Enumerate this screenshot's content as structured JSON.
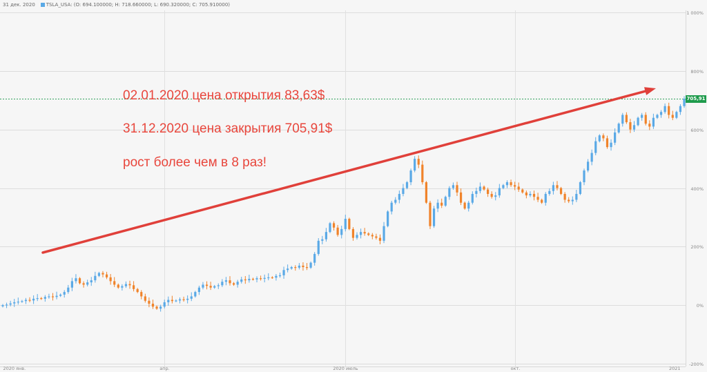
{
  "header": {
    "date": "31 дек. 2020",
    "ohlc": "TSLA_USA: (O: 694.100000; H: 718.660000; L: 690.320000; C: 705.910000)"
  },
  "annotations": [
    "02.01.2020 цена открытия 83,63$",
    "31.12.2020 цена закрытия 705,91$",
    "рост более чем в 8 раз!"
  ],
  "last_price_label": "705,91",
  "colors": {
    "up": "#5aa9e6",
    "down": "#f0832a",
    "arrow": "#e0403a",
    "price_line": "#2ca05a",
    "price_tag": "#1e9b4c"
  },
  "chart_data": {
    "type": "candlestick",
    "title": "",
    "axis_type": "percent change",
    "ylim": [
      -200,
      1000
    ],
    "y_ticks": [
      "1 000%",
      "800%",
      "600%",
      "400%",
      "200%",
      "0%",
      "-200%"
    ],
    "y_tick_values": [
      1000,
      800,
      600,
      400,
      200,
      0,
      -200
    ],
    "x_ticks": [
      "2020 янв.",
      "апр.",
      "2020 июль",
      "окт.",
      "2021"
    ],
    "series": [
      {
        "name": "TSLA_USA",
        "points": [
          [
            0,
            0
          ],
          [
            1,
            2
          ],
          [
            2,
            6
          ],
          [
            3,
            10
          ],
          [
            4,
            12
          ],
          [
            5,
            14
          ],
          [
            6,
            18
          ],
          [
            7,
            16
          ],
          [
            8,
            22
          ],
          [
            9,
            24
          ],
          [
            10,
            22
          ],
          [
            11,
            28
          ],
          [
            12,
            30
          ],
          [
            13,
            28
          ],
          [
            14,
            32
          ],
          [
            15,
            36
          ],
          [
            16,
            45
          ],
          [
            17,
            60
          ],
          [
            18,
            82
          ],
          [
            19,
            92
          ],
          [
            20,
            75
          ],
          [
            21,
            70
          ],
          [
            22,
            78
          ],
          [
            23,
            85
          ],
          [
            24,
            100
          ],
          [
            25,
            110
          ],
          [
            26,
            105
          ],
          [
            27,
            95
          ],
          [
            28,
            82
          ],
          [
            29,
            70
          ],
          [
            30,
            60
          ],
          [
            31,
            65
          ],
          [
            32,
            72
          ],
          [
            33,
            68
          ],
          [
            34,
            55
          ],
          [
            35,
            45
          ],
          [
            36,
            30
          ],
          [
            37,
            15
          ],
          [
            38,
            5
          ],
          [
            39,
            -5
          ],
          [
            40,
            -12
          ],
          [
            41,
            -5
          ],
          [
            42,
            10
          ],
          [
            43,
            18
          ],
          [
            44,
            14
          ],
          [
            45,
            16
          ],
          [
            46,
            20
          ],
          [
            47,
            18
          ],
          [
            48,
            22
          ],
          [
            49,
            30
          ],
          [
            50,
            45
          ],
          [
            51,
            60
          ],
          [
            52,
            70
          ],
          [
            53,
            66
          ],
          [
            54,
            60
          ],
          [
            55,
            65
          ],
          [
            56,
            68
          ],
          [
            57,
            80
          ],
          [
            58,
            85
          ],
          [
            59,
            75
          ],
          [
            60,
            70
          ],
          [
            61,
            80
          ],
          [
            62,
            88
          ],
          [
            63,
            85
          ],
          [
            64,
            90
          ],
          [
            65,
            88
          ],
          [
            66,
            92
          ],
          [
            67,
            90
          ],
          [
            68,
            93
          ],
          [
            69,
            95
          ],
          [
            70,
            94
          ],
          [
            71,
            100
          ],
          [
            72,
            102
          ],
          [
            73,
            120
          ],
          [
            74,
            125
          ],
          [
            75,
            130
          ],
          [
            76,
            128
          ],
          [
            77,
            135
          ],
          [
            78,
            130
          ],
          [
            79,
            128
          ],
          [
            80,
            145
          ],
          [
            81,
            175
          ],
          [
            82,
            220
          ],
          [
            83,
            225
          ],
          [
            84,
            250
          ],
          [
            85,
            280
          ],
          [
            86,
            265
          ],
          [
            87,
            240
          ],
          [
            88,
            260
          ],
          [
            89,
            295
          ],
          [
            90,
            260
          ],
          [
            91,
            230
          ],
          [
            92,
            240
          ],
          [
            93,
            250
          ],
          [
            94,
            245
          ],
          [
            95,
            240
          ],
          [
            96,
            235
          ],
          [
            97,
            230
          ],
          [
            98,
            220
          ],
          [
            99,
            270
          ],
          [
            100,
            320
          ],
          [
            101,
            350
          ],
          [
            102,
            360
          ],
          [
            103,
            380
          ],
          [
            104,
            400
          ],
          [
            105,
            420
          ],
          [
            106,
            460
          ],
          [
            107,
            500
          ],
          [
            108,
            480
          ],
          [
            109,
            420
          ],
          [
            110,
            350
          ],
          [
            111,
            270
          ],
          [
            112,
            330
          ],
          [
            113,
            350
          ],
          [
            114,
            340
          ],
          [
            115,
            370
          ],
          [
            116,
            400
          ],
          [
            117,
            410
          ],
          [
            118,
            385
          ],
          [
            119,
            350
          ],
          [
            120,
            330
          ],
          [
            121,
            350
          ],
          [
            122,
            380
          ],
          [
            123,
            390
          ],
          [
            124,
            405
          ],
          [
            125,
            395
          ],
          [
            126,
            380
          ],
          [
            127,
            370
          ],
          [
            128,
            375
          ],
          [
            129,
            400
          ],
          [
            130,
            410
          ],
          [
            131,
            420
          ],
          [
            132,
            410
          ],
          [
            133,
            405
          ],
          [
            134,
            395
          ],
          [
            135,
            385
          ],
          [
            136,
            375
          ],
          [
            137,
            380
          ],
          [
            138,
            370
          ],
          [
            139,
            360
          ],
          [
            140,
            350
          ],
          [
            141,
            380
          ],
          [
            142,
            390
          ],
          [
            143,
            410
          ],
          [
            144,
            400
          ],
          [
            145,
            380
          ],
          [
            146,
            360
          ],
          [
            147,
            355
          ],
          [
            148,
            360
          ],
          [
            149,
            380
          ],
          [
            150,
            420
          ],
          [
            151,
            460
          ],
          [
            152,
            490
          ],
          [
            153,
            520
          ],
          [
            154,
            560
          ],
          [
            155,
            580
          ],
          [
            156,
            570
          ],
          [
            157,
            540
          ],
          [
            158,
            555
          ],
          [
            159,
            590
          ],
          [
            160,
            620
          ],
          [
            161,
            650
          ],
          [
            162,
            625
          ],
          [
            163,
            600
          ],
          [
            164,
            615
          ],
          [
            165,
            640
          ],
          [
            166,
            650
          ],
          [
            167,
            620
          ],
          [
            168,
            610
          ],
          [
            169,
            640
          ],
          [
            170,
            650
          ],
          [
            171,
            660
          ],
          [
            172,
            680
          ],
          [
            173,
            650
          ],
          [
            174,
            640
          ],
          [
            175,
            660
          ],
          [
            176,
            680
          ],
          [
            177,
            705
          ]
        ]
      }
    ],
    "last_value_label": "705,91"
  }
}
